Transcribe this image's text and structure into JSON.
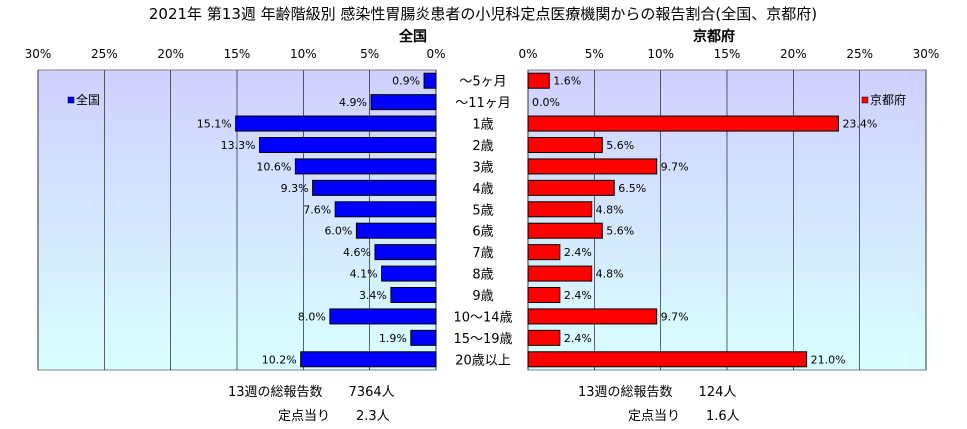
{
  "title": "2021年 第13週 年齢階級別 感染性胃腸炎患者の小児科定点医療機関からの報告割合(全国、京都府)",
  "categories": [
    "～5ヶ月",
    "～11ヶ月",
    "1歳",
    "2歳",
    "3歳",
    "4歳",
    "5歳",
    "6歳",
    "7歳",
    "8歳",
    "9歳",
    "10～14歳",
    "15～19歳",
    "20歳以上"
  ],
  "colors": {
    "national": "#0000ff",
    "kyoto": "#ff0000",
    "plot_bg_top": "#d0d0ff",
    "plot_bg_bottom": "#d8ffff"
  },
  "chart_data": [
    {
      "type": "bar",
      "title": "全国",
      "orientation": "horizontal",
      "direction": "right-to-left",
      "xlim": [
        0,
        30
      ],
      "ticks": [
        "30%",
        "25%",
        "20%",
        "15%",
        "10%",
        "5%",
        "0%"
      ],
      "tick_values": [
        30,
        25,
        20,
        15,
        10,
        5,
        0
      ],
      "legend": "全国",
      "legend_position": "top-left",
      "grid": true,
      "values": [
        0.9,
        4.9,
        15.1,
        13.3,
        10.6,
        9.3,
        7.6,
        6.0,
        4.6,
        4.1,
        3.4,
        8.0,
        1.9,
        10.2
      ],
      "labels": [
        "0.9%",
        "4.9%",
        "15.1%",
        "13.3%",
        "10.6%",
        "9.3%",
        "7.6%",
        "6.0%",
        "4.6%",
        "4.1%",
        "3.4%",
        "8.0%",
        "1.9%",
        "10.2%"
      ]
    },
    {
      "type": "bar",
      "title": "京都府",
      "orientation": "horizontal",
      "direction": "left-to-right",
      "xlim": [
        0,
        30
      ],
      "ticks": [
        "0%",
        "5%",
        "10%",
        "15%",
        "20%",
        "25%",
        "30%"
      ],
      "tick_values": [
        0,
        5,
        10,
        15,
        20,
        25,
        30
      ],
      "legend": "京都府",
      "legend_position": "top-right",
      "grid": true,
      "values": [
        1.6,
        0.0,
        23.4,
        5.6,
        9.7,
        6.5,
        4.8,
        5.6,
        2.4,
        4.8,
        2.4,
        9.7,
        2.4,
        21.0
      ],
      "labels": [
        "1.6%",
        "0.0%",
        "23.4%",
        "5.6%",
        "9.7%",
        "6.5%",
        "4.8%",
        "5.6%",
        "2.4%",
        "4.8%",
        "2.4%",
        "9.7%",
        "2.4%",
        "21.0%"
      ]
    }
  ],
  "footer": {
    "national_total": "13週の総報告数　　7364人",
    "national_per_site": "定点当り　　2.3人",
    "kyoto_total": "13週の総報告数　　124人",
    "kyoto_per_site": "定点当り　　1.6人"
  }
}
